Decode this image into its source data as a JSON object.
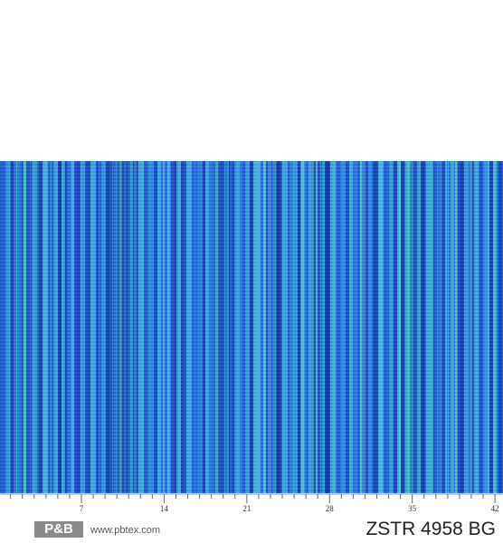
{
  "ruler": {
    "labels": [
      "7",
      "14",
      "21",
      "28",
      "35",
      "42"
    ]
  },
  "footer": {
    "logo": "P&B",
    "website": "www.pbtex.com",
    "code": "ZSTR 4958 BG"
  }
}
